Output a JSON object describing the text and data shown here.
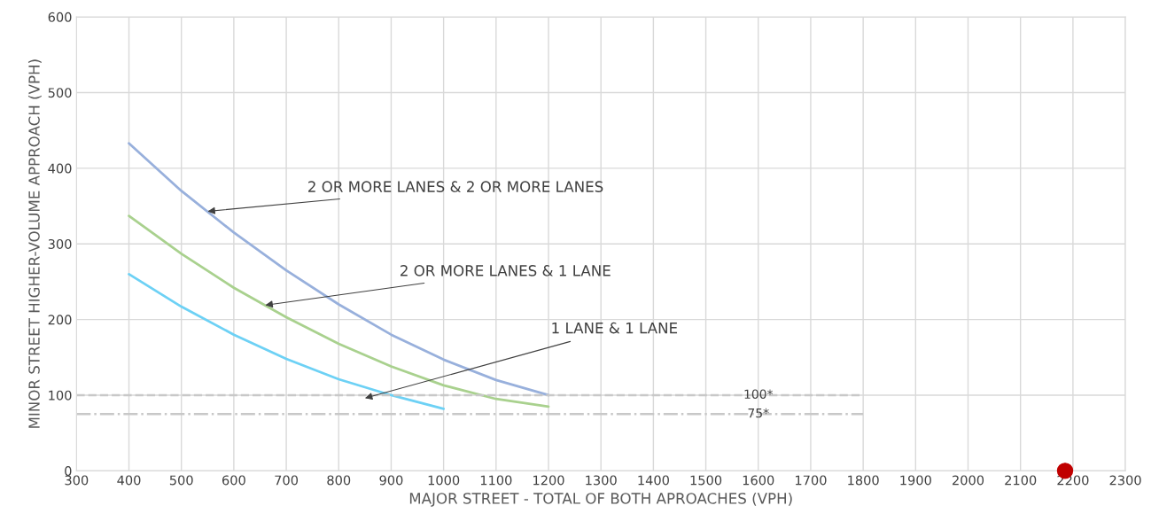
{
  "chart_data": {
    "type": "line",
    "xlabel": "MAJOR STREET - TOTAL OF BOTH APROACHES (VPH)",
    "ylabel": "MINOR STREET HIGHER-VOLUME APPROACH (VPH)",
    "xlim": [
      300,
      2300
    ],
    "xticks": [
      300,
      400,
      500,
      600,
      700,
      800,
      900,
      1000,
      1100,
      1200,
      1300,
      1400,
      1500,
      1600,
      1700,
      1800,
      1900,
      2000,
      2100,
      2200,
      2300
    ],
    "ylim": [
      0,
      600
    ],
    "yticks": [
      0,
      100,
      200,
      300,
      400,
      500,
      600
    ],
    "grid": true,
    "legend": false,
    "series": [
      {
        "color": "#98b0dc",
        "x": [
          400,
          500,
          600,
          700,
          800,
          900,
          1000,
          1100,
          1200
        ],
        "values": [
          433,
          370,
          315,
          265,
          220,
          180,
          147,
          120,
          100
        ]
      },
      {
        "color": "#a9d18e",
        "x": [
          400,
          500,
          600,
          700,
          800,
          900,
          1000,
          1100,
          1200
        ],
        "values": [
          337,
          287,
          242,
          203,
          168,
          138,
          113,
          95,
          85
        ]
      },
      {
        "color": "#6dd1f5",
        "x": [
          400,
          500,
          600,
          700,
          800,
          900,
          1000
        ],
        "values": [
          260,
          217,
          180,
          148,
          121,
          100,
          82
        ]
      },
      {
        "color": "#c8c8c8",
        "x": [
          300,
          1800
        ],
        "values": [
          100,
          100
        ],
        "line_style": "dashed"
      },
      {
        "color": "#c8c8c8",
        "x": [
          300,
          1800
        ],
        "values": [
          75,
          75
        ],
        "line_style": "dashdot"
      },
      {
        "type": "scatter",
        "color": "#c00000",
        "x": [
          2185
        ],
        "values": [
          0
        ],
        "marker": "circle"
      }
    ],
    "annotations": [
      {
        "text": "2 OR MORE LANES & 2 OR MORE LANES",
        "x": 550,
        "y": 343
      },
      {
        "text": "2 OR MORE LANES & 1 LANE",
        "x": 660,
        "y": 219
      },
      {
        "text": "1 LANE & 1 LANE",
        "x": 850,
        "y": 96
      },
      {
        "text": "100*",
        "x": 1600,
        "y": 100
      },
      {
        "text": "75*",
        "x": 1600,
        "y": 75
      }
    ]
  }
}
